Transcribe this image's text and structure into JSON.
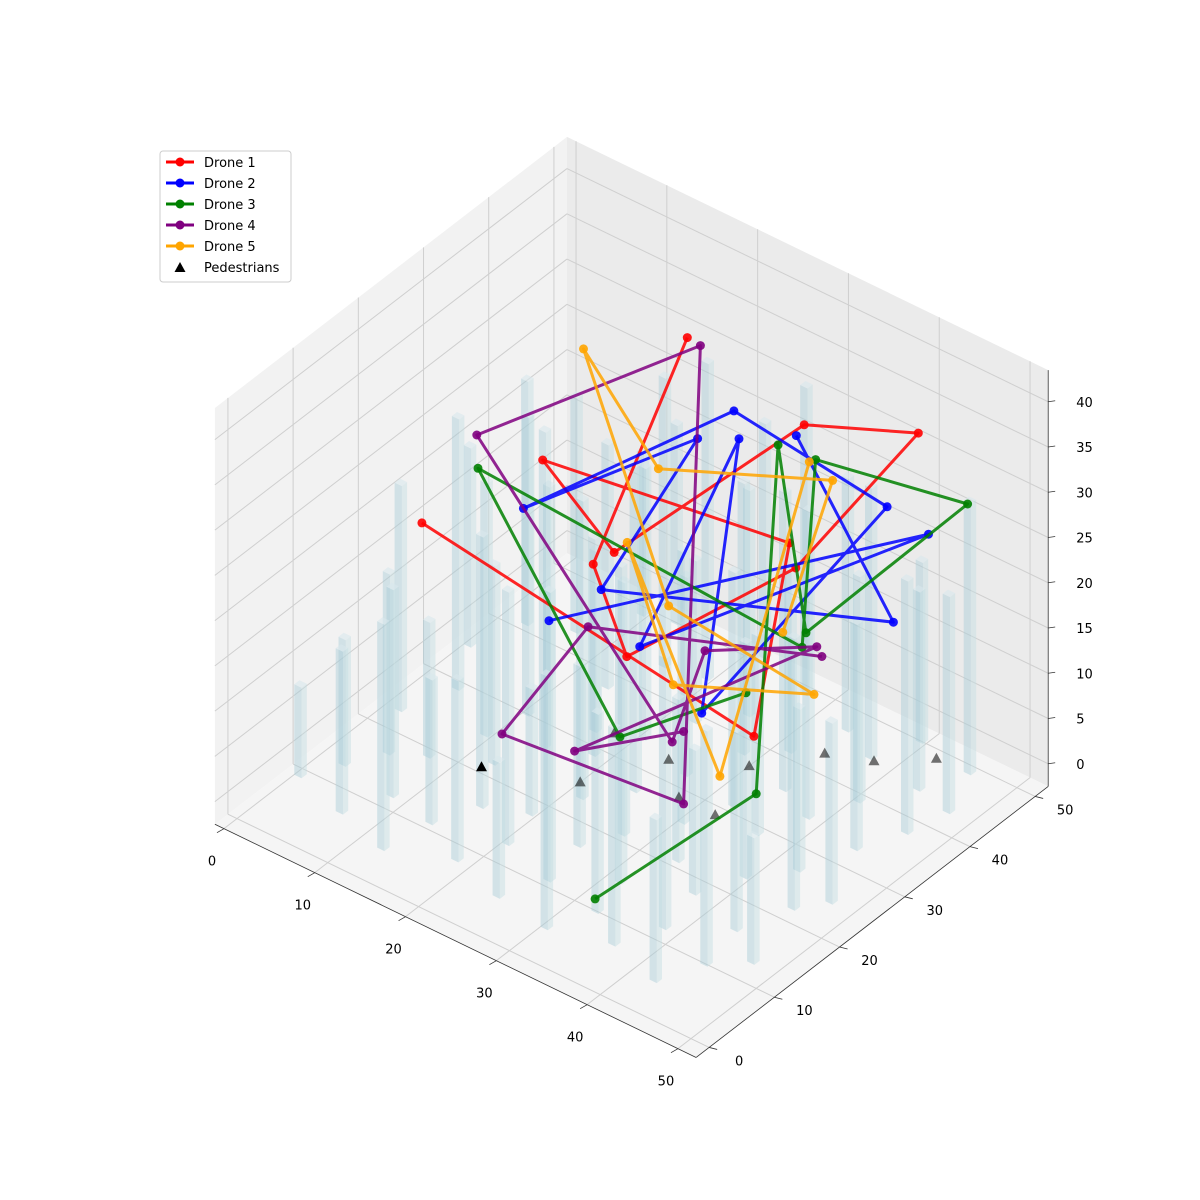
{
  "chart_data": {
    "type": "line3d",
    "title": "",
    "xlabel": "",
    "ylabel": "",
    "zlabel": "",
    "xlim": [
      0,
      50
    ],
    "ylim": [
      0,
      50
    ],
    "zlim": [
      0,
      40
    ],
    "xticks": [
      0,
      10,
      20,
      30,
      40,
      50
    ],
    "yticks": [
      0,
      10,
      20,
      30,
      40,
      50
    ],
    "zticks": [
      0,
      5,
      10,
      15,
      20,
      25,
      30,
      35,
      40
    ],
    "xtick_labels": [
      "0",
      "10",
      "20",
      "30",
      "40",
      "50"
    ],
    "ytick_labels": [
      "0",
      "10",
      "20",
      "30",
      "40",
      "50"
    ],
    "ztick_labels": [
      "0",
      "5",
      "10",
      "15",
      "20",
      "25",
      "30",
      "35",
      "40"
    ],
    "grid": true,
    "legend_position": "upper-left",
    "series": [
      {
        "name": "Drone 1",
        "color": "#ff0000",
        "points": [
          [
            18,
            44,
            35
          ],
          [
            22,
            24,
            23
          ],
          [
            30,
            18,
            20
          ],
          [
            40,
            30,
            28
          ],
          [
            42,
            46,
            35
          ],
          [
            28,
            48,
            28
          ],
          [
            20,
            30,
            20
          ],
          [
            15,
            26,
            30
          ],
          [
            35,
            36,
            25
          ],
          [
            44,
            18,
            18
          ],
          [
            6,
            20,
            22
          ]
        ]
      },
      {
        "name": "Drone 2",
        "color": "#0000ff",
        "points": [
          [
            30,
            44,
            30
          ],
          [
            45,
            38,
            20
          ],
          [
            20,
            28,
            17
          ],
          [
            22,
            40,
            28
          ],
          [
            10,
            30,
            20
          ],
          [
            26,
            40,
            33
          ],
          [
            40,
            44,
            27
          ],
          [
            44,
            10,
            25
          ],
          [
            28,
            38,
            32
          ],
          [
            30,
            20,
            20
          ],
          [
            46,
            42,
            28
          ],
          [
            20,
            20,
            18
          ]
        ]
      },
      {
        "name": "Drone 3",
        "color": "#008000",
        "points": [
          [
            46,
            14,
            26
          ],
          [
            35,
            10,
            18
          ],
          [
            5,
            30,
            22
          ],
          [
            45,
            24,
            25
          ],
          [
            35,
            40,
            32
          ],
          [
            46,
            48,
            28
          ],
          [
            44,
            26,
            25
          ],
          [
            28,
            44,
            28
          ],
          [
            50,
            10,
            19
          ],
          [
            38,
            2,
            6
          ]
        ]
      },
      {
        "name": "Drone 4",
        "color": "#800080",
        "points": [
          [
            42,
            10,
            22
          ],
          [
            30,
            10,
            14
          ],
          [
            38,
            36,
            15
          ],
          [
            30,
            30,
            14
          ],
          [
            35,
            18,
            13
          ],
          [
            2,
            34,
            22
          ],
          [
            18,
            46,
            33
          ],
          [
            42,
            10,
            14
          ],
          [
            22,
            10,
            12
          ],
          [
            20,
            26,
            14
          ],
          [
            40,
            34,
            16
          ]
        ]
      },
      {
        "name": "Drone 5",
        "color": "#ffa500",
        "points": [
          [
            40,
            28,
            22
          ],
          [
            34,
            44,
            27
          ],
          [
            22,
            34,
            28
          ],
          [
            8,
            42,
            30
          ],
          [
            26,
            30,
            17
          ],
          [
            42,
            30,
            15
          ],
          [
            38,
            14,
            23
          ],
          [
            20,
            32,
            20
          ],
          [
            46,
            10,
            19
          ],
          [
            30,
            46,
            26
          ]
        ]
      }
    ],
    "pedestrians": {
      "name": "Pedestrians",
      "color": "#000000",
      "points": [
        [
          14,
          18,
          0
        ],
        [
          22,
          22,
          0
        ],
        [
          30,
          26,
          0
        ],
        [
          26,
          30,
          0
        ],
        [
          36,
          40,
          0
        ],
        [
          40,
          42,
          0
        ],
        [
          32,
          34,
          0
        ],
        [
          20,
          30,
          0
        ],
        [
          44,
          46,
          0
        ],
        [
          34,
          26,
          0
        ]
      ]
    },
    "buildings": [
      [
        2,
        6,
        10
      ],
      [
        4,
        10,
        14
      ],
      [
        6,
        14,
        20
      ],
      [
        3,
        20,
        25
      ],
      [
        5,
        26,
        30
      ],
      [
        2,
        32,
        22
      ],
      [
        4,
        38,
        27
      ],
      [
        8,
        4,
        18
      ],
      [
        10,
        9,
        23
      ],
      [
        9,
        16,
        15
      ],
      [
        11,
        22,
        28
      ],
      [
        12,
        27,
        33
      ],
      [
        10,
        33,
        21
      ],
      [
        8,
        40,
        26
      ],
      [
        11,
        46,
        18
      ],
      [
        14,
        2,
        25
      ],
      [
        15,
        8,
        16
      ],
      [
        17,
        13,
        30
      ],
      [
        14,
        19,
        22
      ],
      [
        16,
        24,
        35
      ],
      [
        18,
        29,
        20
      ],
      [
        15,
        35,
        27
      ],
      [
        17,
        41,
        32
      ],
      [
        14,
        47,
        22
      ],
      [
        20,
        5,
        20
      ],
      [
        22,
        10,
        28
      ],
      [
        21,
        15,
        14
      ],
      [
        23,
        20,
        33
      ],
      [
        20,
        26,
        24
      ],
      [
        22,
        31,
        30
      ],
      [
        24,
        36,
        18
      ],
      [
        21,
        42,
        35
      ],
      [
        23,
        48,
        26
      ],
      [
        26,
        3,
        15
      ],
      [
        28,
        8,
        32
      ],
      [
        27,
        14,
        20
      ],
      [
        29,
        18,
        28
      ],
      [
        26,
        24,
        36
      ],
      [
        28,
        29,
        22
      ],
      [
        30,
        35,
        30
      ],
      [
        27,
        40,
        25
      ],
      [
        29,
        46,
        34
      ],
      [
        32,
        2,
        28
      ],
      [
        34,
        7,
        22
      ],
      [
        33,
        12,
        35
      ],
      [
        35,
        18,
        18
      ],
      [
        32,
        23,
        30
      ],
      [
        34,
        28,
        26
      ],
      [
        36,
        33,
        33
      ],
      [
        33,
        38,
        20
      ],
      [
        35,
        44,
        28
      ],
      [
        38,
        4,
        24
      ],
      [
        40,
        9,
        30
      ],
      [
        39,
        15,
        16
      ],
      [
        41,
        20,
        26
      ],
      [
        38,
        26,
        22
      ],
      [
        40,
        31,
        34
      ],
      [
        42,
        36,
        25
      ],
      [
        39,
        42,
        30
      ],
      [
        41,
        47,
        20
      ],
      [
        44,
        2,
        18
      ],
      [
        46,
        7,
        26
      ],
      [
        45,
        13,
        22
      ],
      [
        47,
        19,
        30
      ],
      [
        44,
        24,
        18
      ],
      [
        46,
        30,
        25
      ],
      [
        48,
        35,
        28
      ],
      [
        45,
        41,
        22
      ],
      [
        47,
        46,
        30
      ],
      [
        49,
        10,
        14
      ],
      [
        49,
        22,
        20
      ],
      [
        49,
        40,
        24
      ]
    ]
  }
}
